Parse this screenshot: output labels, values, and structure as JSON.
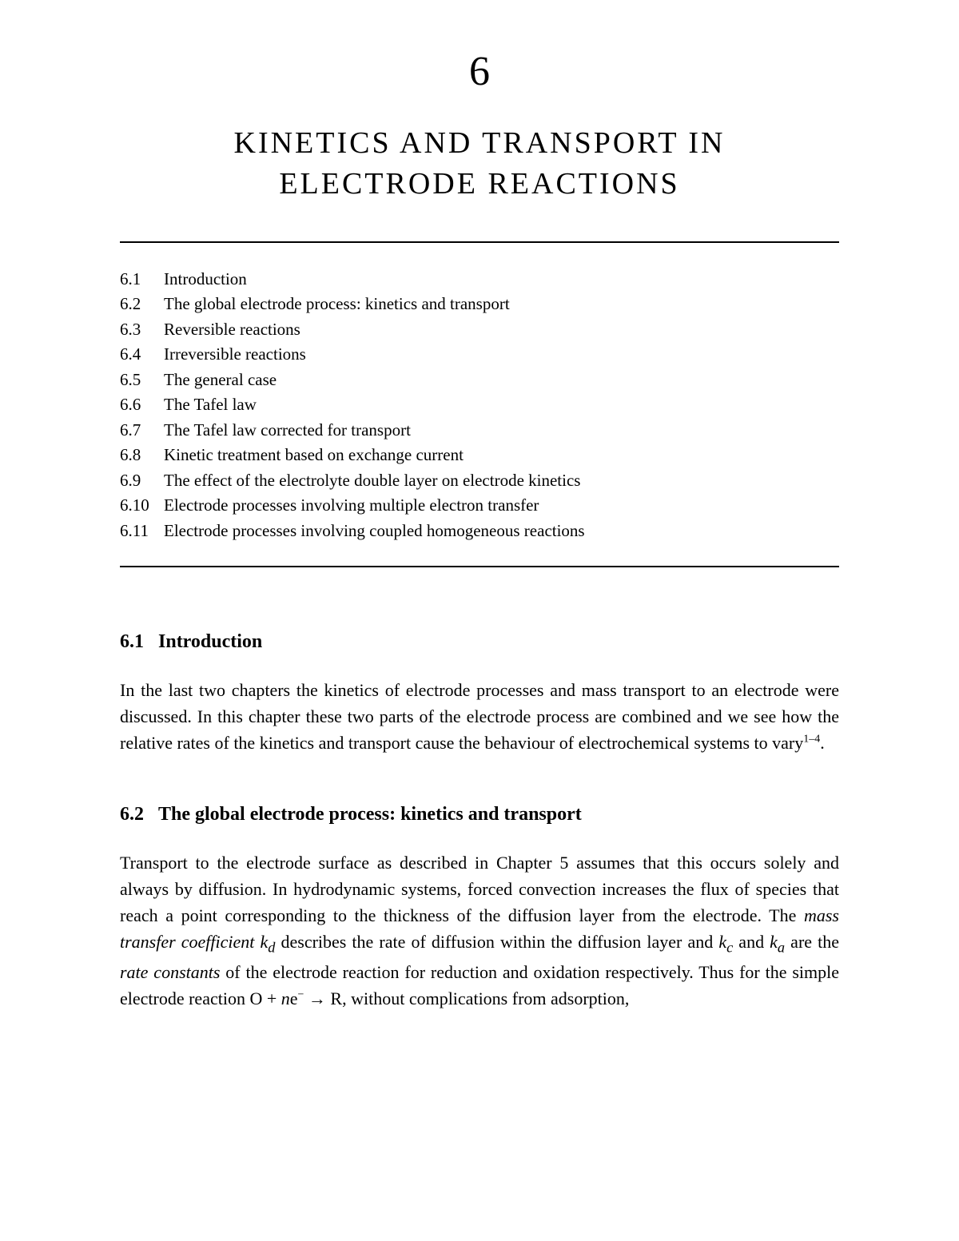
{
  "chapter_number": "6",
  "chapter_title_line1": "KINETICS AND TRANSPORT IN",
  "chapter_title_line2": "ELECTRODE REACTIONS",
  "toc": [
    {
      "num": "6.1",
      "text": "Introduction"
    },
    {
      "num": "6.2",
      "text": "The global electrode process: kinetics and transport"
    },
    {
      "num": "6.3",
      "text": "Reversible reactions"
    },
    {
      "num": "6.4",
      "text": "Irreversible reactions"
    },
    {
      "num": "6.5",
      "text": "The general case"
    },
    {
      "num": "6.6",
      "text": "The Tafel law"
    },
    {
      "num": "6.7",
      "text": "The Tafel law corrected for transport"
    },
    {
      "num": "6.8",
      "text": "Kinetic treatment based on exchange current"
    },
    {
      "num": "6.9",
      "text": "The effect of the electrolyte double layer on electrode kinetics"
    },
    {
      "num": "6.10",
      "text": "Electrode processes involving multiple electron transfer"
    },
    {
      "num": "6.11",
      "text": "Electrode processes involving coupled homogeneous reactions"
    }
  ],
  "sections": {
    "s1": {
      "num": "6.1",
      "title": "Introduction",
      "para_pre": "In the last two chapters the kinetics of electrode processes and mass transport to an electrode were discussed. In this chapter these two parts of the electrode process are combined and we see how the relative rates of the kinetics and transport cause the behaviour of electrochemical systems to vary",
      "sup": "1–4",
      "para_post": "."
    },
    "s2": {
      "num": "6.2",
      "title": "The global electrode process: kinetics and transport",
      "p1": "Transport to the electrode surface as described in Chapter 5 assumes that this occurs solely and always by diffusion. In hydrodynamic systems, forced convection increases the flux of species that reach a point corresponding to the thickness of the diffusion layer from the electrode. The ",
      "i1": "mass transfer coefficient k",
      "sub1": "d",
      "p2": " describes the rate of diffusion within the diffusion layer and ",
      "i2": "k",
      "sub2": "c",
      "p3": " and ",
      "i3": "k",
      "sub3": "a",
      "p4": " are the ",
      "i4": "rate constants",
      "p5": " of the electrode reaction for reduction and oxidation respectively. Thus for the simple electrode reaction O + ",
      "i5": "n",
      "p6": "e",
      "sup_minus": "−",
      "p7": " → R, without complications from adsorption,"
    }
  }
}
